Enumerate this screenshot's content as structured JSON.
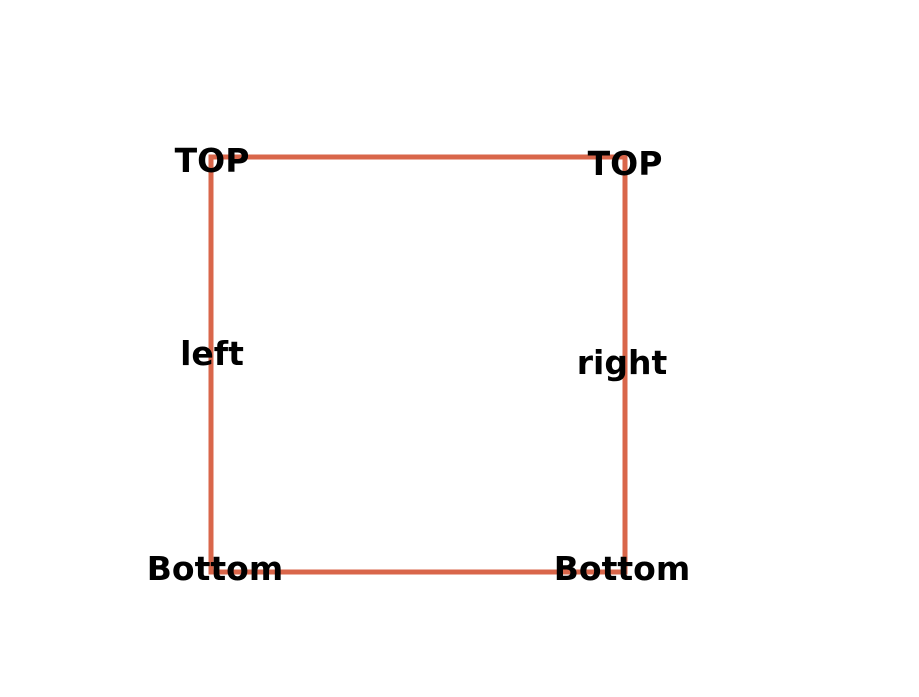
{
  "diagram": {
    "stroke_color": "#d9664a",
    "labels": {
      "top_left": "TOP",
      "top_right": "TOP",
      "left": "left",
      "right": "right",
      "bottom_left": "Bottom",
      "bottom_right": "Bottom"
    }
  }
}
